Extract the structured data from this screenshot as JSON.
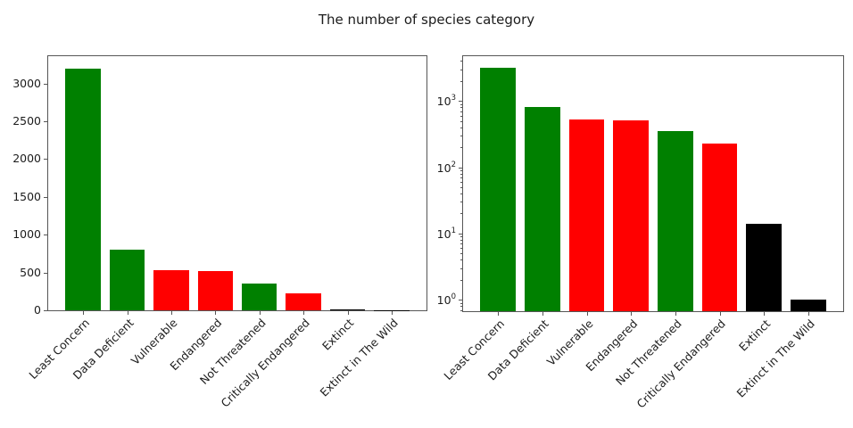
{
  "title": "The number of species category",
  "colors": {
    "bar_green": "#008000",
    "bar_red": "#ff0000",
    "bar_black": "#000000",
    "axis": "#565656",
    "text": "#1c1c1c",
    "background": "#ffffff"
  },
  "chart_data": [
    {
      "type": "bar",
      "title": "The number of species category",
      "yscale": "linear",
      "categories": [
        "Least Concern",
        "Data Deficient",
        "Vulnerable",
        "Endangered",
        "Not Threatened",
        "Critically Endangered",
        "Extinct",
        "Extinct in The Wild"
      ],
      "values": [
        3200,
        800,
        530,
        515,
        350,
        230,
        14,
        1
      ],
      "bar_colors": [
        "#008000",
        "#008000",
        "#ff0000",
        "#ff0000",
        "#008000",
        "#ff0000",
        "#000000",
        "#000000"
      ],
      "ylim": [
        0,
        3360
      ],
      "yticks": [
        0,
        500,
        1000,
        1500,
        2000,
        2500,
        3000
      ],
      "xlabel": "",
      "ylabel": "",
      "grid": false,
      "legend": false,
      "xtick_rotation_deg": 45
    },
    {
      "type": "bar",
      "title": "The number of species category",
      "yscale": "log",
      "categories": [
        "Least Concern",
        "Data Deficient",
        "Vulnerable",
        "Endangered",
        "Not Threatened",
        "Critically Endangered",
        "Extinct",
        "Extinct in The Wild"
      ],
      "values": [
        3200,
        800,
        530,
        515,
        350,
        230,
        14,
        1
      ],
      "bar_colors": [
        "#008000",
        "#008000",
        "#ff0000",
        "#ff0000",
        "#008000",
        "#ff0000",
        "#000000",
        "#000000"
      ],
      "ylim": [
        0.67,
        4730
      ],
      "ytick_base": "10",
      "ytick_exponents": [
        0,
        1,
        2,
        3
      ],
      "xlabel": "",
      "ylabel": "",
      "grid": false,
      "legend": false,
      "xtick_rotation_deg": 45
    }
  ]
}
